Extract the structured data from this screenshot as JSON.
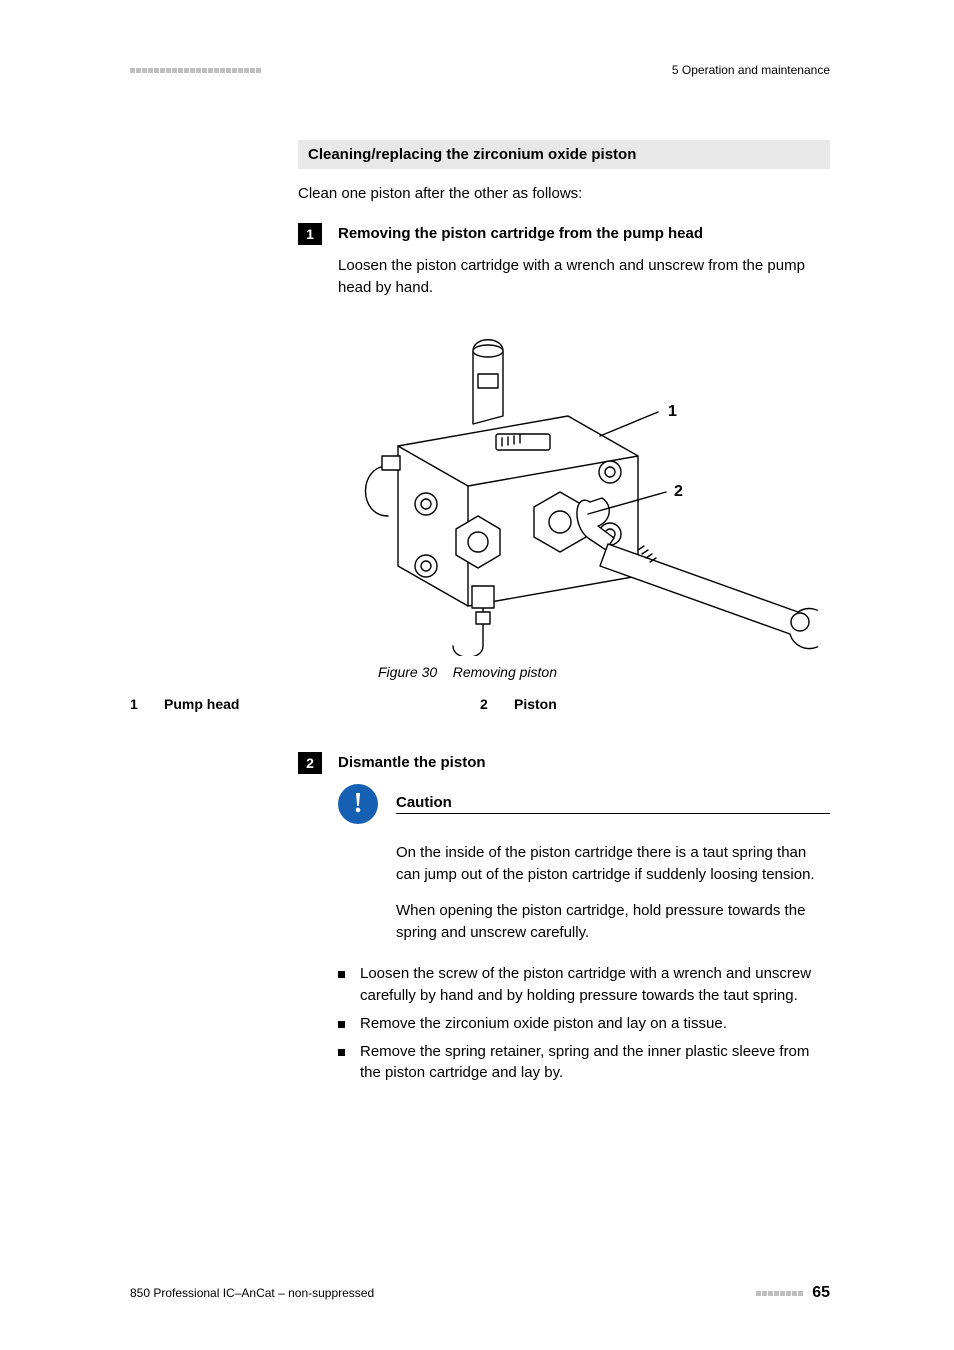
{
  "header": {
    "chapter_ref": "5 Operation and maintenance",
    "decor_squares": 22
  },
  "section_heading": "Cleaning/replacing the zirconium oxide piston",
  "intro": "Clean one piston after the other as follows:",
  "step1": {
    "num": "1",
    "title": "Removing the piston cartridge from the pump head",
    "body": "Loosen the piston cartridge with a wrench and unscrew from the pump head by hand."
  },
  "figure": {
    "caption_prefix": "Figure 30",
    "caption": "Removing piston",
    "callout_1": "1",
    "callout_2": "2",
    "legend": {
      "n1": "1",
      "l1": "Pump head",
      "n2": "2",
      "l2": "Piston"
    }
  },
  "step2": {
    "num": "2",
    "title": "Dismantle the piston",
    "caution_label": "Caution",
    "caution_p1": "On the inside of the piston cartridge there is a taut spring than can jump out of the piston cartridge if suddenly loosing tension.",
    "caution_p2": "When opening the piston cartridge, hold pressure towards the spring and unscrew carefully.",
    "bullets": [
      "Loosen the screw of the piston cartridge with a wrench and unscrew carefully by hand and by holding pressure towards the taut spring.",
      "Remove the zirconium oxide piston and lay on a tissue.",
      "Remove the spring retainer, spring and the inner plastic sleeve from the piston cartridge and lay by."
    ]
  },
  "footer": {
    "doc": "850 Professional IC–AnCat – non-suppressed",
    "page": "65",
    "decor_squares": 8
  }
}
